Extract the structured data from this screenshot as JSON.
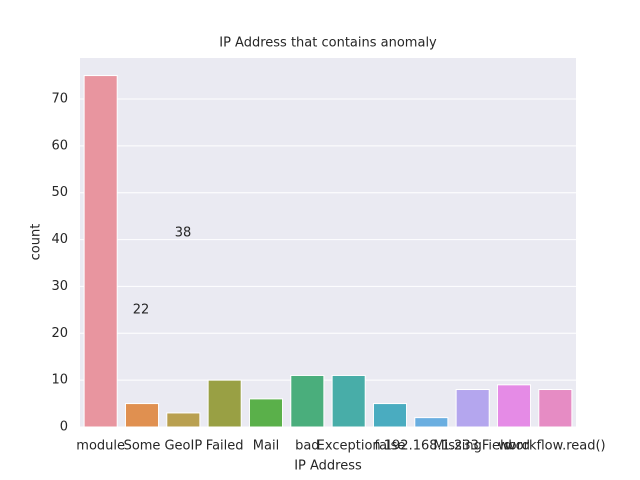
{
  "chart_data": {
    "type": "bar",
    "title": "IP Address that contains anomaly",
    "x_label": "IP Address",
    "y_label": "count",
    "categories": [
      "module",
      "Some",
      "GeoIP",
      "Failed",
      "Mail",
      "bad",
      "Exception",
      "false",
      "192.168.1.233",
      "MissingField",
      "word",
      "workflow.read()"
    ],
    "values": [
      75,
      5,
      3,
      10,
      6,
      11,
      11,
      5,
      2,
      8,
      9,
      8
    ],
    "colors": [
      "#e8959f",
      "#e09050",
      "#b9a050",
      "#99a044",
      "#5ab04a",
      "#4aae7c",
      "#48ada8",
      "#4aacc0",
      "#6aaee0",
      "#b4a6ee",
      "#e58be6",
      "#e68cc4"
    ],
    "ylim": [
      0,
      78.75
    ],
    "yticks": [
      0,
      10,
      20,
      30,
      40,
      50,
      60,
      70
    ],
    "grid": true,
    "annotations": [
      "38",
      "22"
    ]
  }
}
